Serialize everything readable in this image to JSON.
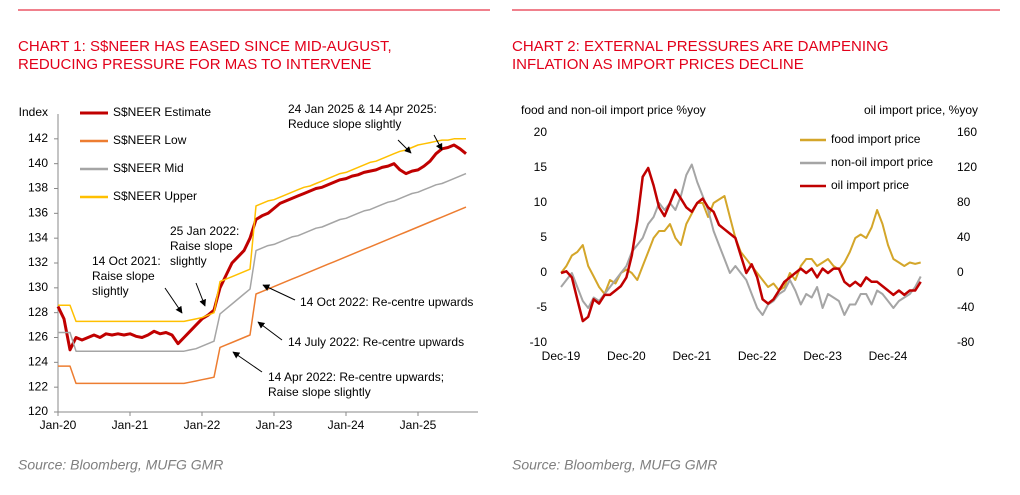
{
  "chart_data": [
    {
      "type": "line",
      "title": [
        "CHART 1: S$NEER HAS EASED SINCE MID-AUGUST,",
        "REDUCING PRESSURE FOR MAS TO INTERVENE"
      ],
      "y_label": "Index",
      "source": "Source: Bloomberg, MUFG GMR",
      "legend": "top-left",
      "axis_lines": true,
      "xlim": [
        "2020-01",
        "2025-11"
      ],
      "xticks": [
        {
          "value": "2020-01",
          "label": "Jan-20"
        },
        {
          "value": "2021-01",
          "label": "Jan-21"
        },
        {
          "value": "2022-01",
          "label": "Jan-22"
        },
        {
          "value": "2023-01",
          "label": "Jan-23"
        },
        {
          "value": "2024-01",
          "label": "Jan-24"
        },
        {
          "value": "2025-01",
          "label": "Jan-25"
        }
      ],
      "ylim": [
        120,
        144
      ],
      "yticks": [
        120,
        122,
        124,
        126,
        128,
        130,
        132,
        134,
        136,
        138,
        140,
        142
      ],
      "x": [
        "2020-01",
        "2020-02",
        "2020-03",
        "2020-04",
        "2020-05",
        "2020-06",
        "2020-07",
        "2020-08",
        "2020-09",
        "2020-10",
        "2020-11",
        "2020-12",
        "2021-01",
        "2021-02",
        "2021-03",
        "2021-04",
        "2021-05",
        "2021-06",
        "2021-07",
        "2021-08",
        "2021-09",
        "2021-10",
        "2021-11",
        "2021-12",
        "2022-01",
        "2022-02",
        "2022-03",
        "2022-04",
        "2022-05",
        "2022-06",
        "2022-07",
        "2022-08",
        "2022-09",
        "2022-10",
        "2022-11",
        "2022-12",
        "2023-01",
        "2023-02",
        "2023-03",
        "2023-04",
        "2023-05",
        "2023-06",
        "2023-07",
        "2023-08",
        "2023-09",
        "2023-10",
        "2023-11",
        "2023-12",
        "2024-01",
        "2024-02",
        "2024-03",
        "2024-04",
        "2024-05",
        "2024-06",
        "2024-07",
        "2024-08",
        "2024-09",
        "2024-10",
        "2024-11",
        "2024-12",
        "2025-01",
        "2025-02",
        "2025-03",
        "2025-04",
        "2025-05",
        "2025-06",
        "2025-07",
        "2025-08",
        "2025-09"
      ],
      "series": [
        {
          "name": "S$NEER Estimate",
          "color": "#c00000",
          "width": 3,
          "values": [
            128.5,
            127.5,
            125,
            126,
            125.8,
            126,
            126.2,
            126,
            126.3,
            126.2,
            126.3,
            126.2,
            126.3,
            126.1,
            126,
            126.2,
            126.5,
            126.3,
            126.4,
            126.2,
            125.5,
            126,
            126.5,
            127,
            127.5,
            127.8,
            128.2,
            130,
            131,
            132,
            132.5,
            133,
            134,
            135.5,
            135.8,
            136,
            136.4,
            136.8,
            137,
            137.2,
            137.4,
            137.6,
            137.8,
            138,
            138.1,
            138.3,
            138.5,
            138.7,
            138.8,
            139,
            139.1,
            139.3,
            139.4,
            139.5,
            139.7,
            139.8,
            140,
            139.5,
            139.2,
            139.4,
            139.5,
            139.8,
            140.2,
            140.8,
            141.2,
            141.3,
            141.5,
            141.2,
            140.8
          ]
        },
        {
          "name": "S$NEER Low",
          "color": "#ed7d31",
          "width": 1.5,
          "values": [
            123.7,
            123.7,
            123.7,
            122.3,
            122.3,
            122.3,
            122.3,
            122.3,
            122.3,
            122.3,
            122.3,
            122.3,
            122.3,
            122.3,
            122.3,
            122.3,
            122.3,
            122.3,
            122.3,
            122.3,
            122.3,
            122.3,
            122.4,
            122.5,
            122.6,
            122.7,
            122.8,
            125.2,
            125.4,
            125.6,
            125.8,
            126,
            126.2,
            129.5,
            129.7,
            129.9,
            130.1,
            130.3,
            130.5,
            130.7,
            130.9,
            131.1,
            131.3,
            131.5,
            131.7,
            131.9,
            132.1,
            132.3,
            132.5,
            132.7,
            132.9,
            133.1,
            133.3,
            133.5,
            133.7,
            133.9,
            134.1,
            134.3,
            134.5,
            134.7,
            134.9,
            135.1,
            135.3,
            135.5,
            135.7,
            135.9,
            136.1,
            136.3,
            136.5
          ]
        },
        {
          "name": "S$NEER Mid",
          "color": "#a5a5a5",
          "width": 1.5,
          "values": [
            126.4,
            126.4,
            126.4,
            124.9,
            124.9,
            124.9,
            124.9,
            124.9,
            124.9,
            124.9,
            124.9,
            124.9,
            124.9,
            124.9,
            124.9,
            124.9,
            124.9,
            124.9,
            124.9,
            124.9,
            124.9,
            124.9,
            125,
            125.1,
            125.3,
            125.5,
            125.7,
            127.9,
            128.3,
            128.7,
            129.1,
            129.5,
            129.9,
            133,
            133.2,
            133.4,
            133.5,
            133.7,
            133.9,
            134.1,
            134.2,
            134.4,
            134.6,
            134.8,
            134.9,
            135.1,
            135.3,
            135.5,
            135.6,
            135.8,
            136,
            136.2,
            136.3,
            136.5,
            136.7,
            136.9,
            137,
            137.2,
            137.4,
            137.6,
            137.7,
            137.9,
            138.1,
            138.3,
            138.4,
            138.6,
            138.8,
            139,
            139.2
          ]
        },
        {
          "name": "S$NEER Upper",
          "color": "#ffc000",
          "width": 1.5,
          "values": [
            128.6,
            128.6,
            128.6,
            127.3,
            127.3,
            127.3,
            127.3,
            127.3,
            127.3,
            127.3,
            127.3,
            127.3,
            127.3,
            127.3,
            127.3,
            127.3,
            127.3,
            127.3,
            127.3,
            127.3,
            127.3,
            127.3,
            127.4,
            127.5,
            127.6,
            127.8,
            128,
            130.5,
            130.7,
            130.9,
            131.1,
            131.3,
            131.5,
            136.6,
            136.8,
            137,
            137.1,
            137.3,
            137.5,
            137.7,
            137.9,
            138.1,
            138.2,
            138.4,
            138.6,
            138.8,
            139,
            139.2,
            139.3,
            139.5,
            139.7,
            139.9,
            140.1,
            140.2,
            140.4,
            140.6,
            140.8,
            141,
            141.1,
            141.3,
            141.5,
            141.6,
            141.7,
            141.8,
            141.9,
            141.9,
            142,
            142,
            142
          ]
        }
      ],
      "annotations": [
        {
          "lines": [
            "24 Jan 2025 & 14 Apr 2025:",
            "Reduce slope slightly"
          ]
        },
        {
          "lines": [
            "25 Jan 2022:",
            "Raise slope",
            "slightly"
          ]
        },
        {
          "lines": [
            "14 Oct 2021:",
            "Raise slope",
            "slightly"
          ]
        },
        {
          "lines": [
            "14 Oct 2022: Re-centre upwards"
          ]
        },
        {
          "lines": [
            "14 July 2022: Re-centre upwards"
          ]
        },
        {
          "lines": [
            "14 Apr 2022: Re-centre upwards;",
            "Raise slope slightly"
          ]
        }
      ]
    },
    {
      "type": "line",
      "title": [
        "CHART 2: EXTERNAL PRESSURES ARE DAMPENING",
        "INFLATION AS IMPORT PRICES DECLINE"
      ],
      "y_label": "food and non-oil import price %yoy",
      "y2_label": "oil import price, %yoy",
      "source": "Source: Bloomberg, MUFG GMR",
      "legend": "top-right",
      "axis_lines": false,
      "xlim": [
        "2019-12",
        "2025-09"
      ],
      "xticks": [
        {
          "value": "2019-12",
          "label": "Dec-19"
        },
        {
          "value": "2020-12",
          "label": "Dec-20"
        },
        {
          "value": "2021-12",
          "label": "Dec-21"
        },
        {
          "value": "2022-12",
          "label": "Dec-22"
        },
        {
          "value": "2023-12",
          "label": "Dec-23"
        },
        {
          "value": "2024-12",
          "label": "Dec-24"
        }
      ],
      "ylim": [
        -10,
        20
      ],
      "yticks": [
        -10,
        -5,
        0,
        5,
        10,
        15,
        20
      ],
      "y2lim": [
        -80,
        160
      ],
      "y2ticks": [
        -80,
        -40,
        0,
        40,
        80,
        120,
        160
      ],
      "x": [
        "2019-12",
        "2020-01",
        "2020-02",
        "2020-03",
        "2020-04",
        "2020-05",
        "2020-06",
        "2020-07",
        "2020-08",
        "2020-09",
        "2020-10",
        "2020-11",
        "2020-12",
        "2021-01",
        "2021-02",
        "2021-03",
        "2021-04",
        "2021-05",
        "2021-06",
        "2021-07",
        "2021-08",
        "2021-09",
        "2021-10",
        "2021-11",
        "2021-12",
        "2022-01",
        "2022-02",
        "2022-03",
        "2022-04",
        "2022-05",
        "2022-06",
        "2022-07",
        "2022-08",
        "2022-09",
        "2022-10",
        "2022-11",
        "2022-12",
        "2023-01",
        "2023-02",
        "2023-03",
        "2023-04",
        "2023-05",
        "2023-06",
        "2023-07",
        "2023-08",
        "2023-09",
        "2023-10",
        "2023-11",
        "2023-12",
        "2024-01",
        "2024-02",
        "2024-03",
        "2024-04",
        "2024-05",
        "2024-06",
        "2024-07",
        "2024-08",
        "2024-09",
        "2024-10",
        "2024-11",
        "2024-12",
        "2025-01",
        "2025-02",
        "2025-03",
        "2025-04",
        "2025-05",
        "2025-06"
      ],
      "series": [
        {
          "name": "food import price",
          "color": "#d4a62a",
          "width": 2,
          "values": [
            0,
            1,
            2.5,
            3,
            4,
            1,
            -0.5,
            -2,
            -3,
            -1,
            -1.5,
            0,
            0.5,
            0,
            -1,
            1,
            3,
            5,
            6,
            6,
            7,
            5,
            4,
            7,
            8.5,
            10,
            10,
            8,
            10,
            10.5,
            11,
            8,
            5,
            3,
            2,
            1,
            0,
            -1,
            -2,
            -1.5,
            -2.5,
            -2,
            0,
            -1,
            1,
            2,
            2,
            1,
            1.5,
            2,
            1,
            0.5,
            1.5,
            3,
            5,
            5.5,
            5,
            6.5,
            9,
            7,
            4,
            2,
            1.5,
            1,
            1.5,
            1.3,
            1.5
          ]
        },
        {
          "name": "non-oil import price",
          "color": "#a5a5a5",
          "width": 2,
          "values": [
            -2,
            -1,
            0,
            -2,
            -4,
            -5,
            -3.5,
            -4,
            -3,
            -2,
            -1,
            0,
            1,
            3,
            4,
            5,
            7,
            8,
            10,
            9,
            10,
            9,
            11,
            14,
            15.5,
            13,
            11,
            9,
            6,
            4,
            2,
            0,
            1,
            0,
            -1,
            -3,
            -5,
            -6,
            -4.5,
            -4,
            -3,
            -2.5,
            -1,
            -2.5,
            -4.5,
            -3,
            -3.5,
            -2,
            -5,
            -3,
            -3.5,
            -4,
            -6,
            -4.5,
            -4.5,
            -3,
            -3,
            -4.5,
            -2.5,
            -3,
            -4,
            -5,
            -4,
            -3.5,
            -3,
            -2,
            -0.5
          ]
        },
        {
          "name": "oil import price",
          "color": "#c00000",
          "width": 2.5,
          "axis": "y2",
          "values": [
            0,
            2,
            -5,
            -30,
            -55,
            -50,
            -30,
            -35,
            -25,
            -25,
            -20,
            -15,
            -5,
            20,
            60,
            110,
            120,
            100,
            75,
            65,
            80,
            95,
            85,
            75,
            70,
            80,
            85,
            75,
            70,
            55,
            50,
            45,
            40,
            20,
            0,
            10,
            -5,
            -30,
            -35,
            -30,
            -20,
            -10,
            -5,
            0,
            5,
            0,
            5,
            -5,
            5,
            0,
            5,
            5,
            -10,
            -15,
            -10,
            -15,
            -5,
            -10,
            -10,
            -15,
            -20,
            -25,
            -20,
            -25,
            -20,
            -20,
            -10
          ]
        }
      ]
    }
  ]
}
